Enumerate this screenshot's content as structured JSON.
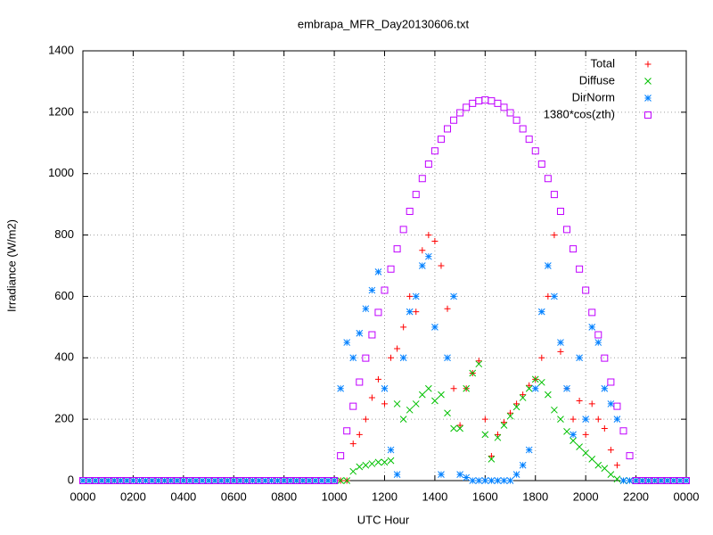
{
  "chart_data": {
    "type": "scatter",
    "title": "embrapa_MFR_Day20130606.txt",
    "x_label": "UTC Hour",
    "y_label": "Irradiance (W/m2)",
    "xlim": [
      0,
      24
    ],
    "xticks": [
      {
        "value": 0,
        "label": "0000"
      },
      {
        "value": 2,
        "label": "0200"
      },
      {
        "value": 4,
        "label": "0400"
      },
      {
        "value": 6,
        "label": "0600"
      },
      {
        "value": 8,
        "label": "0800"
      },
      {
        "value": 10,
        "label": "1000"
      },
      {
        "value": 12,
        "label": "1200"
      },
      {
        "value": 14,
        "label": "1400"
      },
      {
        "value": 16,
        "label": "1600"
      },
      {
        "value": 18,
        "label": "1800"
      },
      {
        "value": 20,
        "label": "2000"
      },
      {
        "value": 22,
        "label": "2200"
      },
      {
        "value": 24,
        "label": "0000"
      }
    ],
    "ylim": [
      0,
      1400
    ],
    "yticks": [
      0,
      200,
      400,
      600,
      800,
      1000,
      1200,
      1400
    ],
    "grid": true,
    "legend": "top-right",
    "x": [
      0,
      0.25,
      0.5,
      0.75,
      1,
      1.25,
      1.5,
      1.75,
      2,
      2.25,
      2.5,
      2.75,
      3,
      3.25,
      3.5,
      3.75,
      4,
      4.25,
      4.5,
      4.75,
      5,
      5.25,
      5.5,
      5.75,
      6,
      6.25,
      6.5,
      6.75,
      7,
      7.25,
      7.5,
      7.75,
      8,
      8.25,
      8.5,
      8.75,
      9,
      9.25,
      9.5,
      9.75,
      10,
      10.25,
      10.5,
      10.75,
      11,
      11.25,
      11.5,
      11.75,
      12,
      12.25,
      12.5,
      12.75,
      13,
      13.25,
      13.5,
      13.75,
      14,
      14.25,
      14.5,
      14.75,
      15,
      15.25,
      15.5,
      15.75,
      16,
      16.25,
      16.5,
      16.75,
      17,
      17.25,
      17.5,
      17.75,
      18,
      18.25,
      18.5,
      18.75,
      19,
      19.25,
      19.5,
      19.75,
      20,
      20.25,
      20.5,
      20.75,
      21,
      21.25,
      21.5,
      21.75,
      22,
      22.25,
      22.5,
      22.75,
      23,
      23.25,
      23.5,
      23.75,
      24
    ],
    "series": [
      {
        "name": "Total",
        "color": "#ff0000",
        "marker": "plus",
        "values": [
          0,
          0,
          0,
          0,
          0,
          0,
          0,
          0,
          0,
          0,
          0,
          0,
          0,
          0,
          0,
          0,
          0,
          0,
          0,
          0,
          0,
          0,
          0,
          0,
          0,
          0,
          0,
          0,
          0,
          0,
          0,
          0,
          0,
          0,
          0,
          0,
          0,
          0,
          0,
          0,
          0,
          0,
          0,
          120,
          150,
          200,
          270,
          330,
          250,
          400,
          430,
          500,
          600,
          550,
          750,
          800,
          780,
          700,
          560,
          300,
          180,
          300,
          350,
          390,
          200,
          80,
          150,
          190,
          220,
          250,
          280,
          310,
          330,
          400,
          600,
          800,
          420,
          300,
          200,
          260,
          150,
          250,
          200,
          170,
          100,
          50,
          0,
          0,
          0,
          0,
          0,
          0,
          0,
          0,
          0,
          0,
          0
        ]
      },
      {
        "name": "Diffuse",
        "color": "#00c000",
        "marker": "cross",
        "values": [
          0,
          0,
          0,
          0,
          0,
          0,
          0,
          0,
          0,
          0,
          0,
          0,
          0,
          0,
          0,
          0,
          0,
          0,
          0,
          0,
          0,
          0,
          0,
          0,
          0,
          0,
          0,
          0,
          0,
          0,
          0,
          0,
          0,
          0,
          0,
          0,
          0,
          0,
          0,
          0,
          0,
          0,
          0,
          30,
          45,
          50,
          55,
          60,
          60,
          65,
          250,
          200,
          230,
          250,
          280,
          300,
          260,
          280,
          220,
          170,
          170,
          300,
          350,
          380,
          150,
          70,
          140,
          180,
          210,
          240,
          270,
          300,
          330,
          320,
          280,
          230,
          200,
          160,
          130,
          110,
          90,
          70,
          50,
          40,
          20,
          5,
          0,
          0,
          0,
          0,
          0,
          0,
          0,
          0,
          0,
          0,
          0
        ]
      },
      {
        "name": "DirNorm",
        "color": "#0080ff",
        "marker": "star",
        "values": [
          0,
          0,
          0,
          0,
          0,
          0,
          0,
          0,
          0,
          0,
          0,
          0,
          0,
          0,
          0,
          0,
          0,
          0,
          0,
          0,
          0,
          0,
          0,
          0,
          0,
          0,
          0,
          0,
          0,
          0,
          0,
          0,
          0,
          0,
          0,
          0,
          0,
          0,
          0,
          0,
          0,
          300,
          450,
          400,
          480,
          560,
          620,
          680,
          300,
          100,
          20,
          400,
          550,
          600,
          700,
          730,
          500,
          20,
          400,
          600,
          20,
          10,
          0,
          0,
          0,
          0,
          0,
          0,
          0,
          20,
          50,
          100,
          300,
          550,
          700,
          600,
          450,
          300,
          150,
          400,
          200,
          500,
          450,
          300,
          250,
          200,
          0,
          0,
          0,
          0,
          0,
          0,
          0,
          0,
          0,
          0,
          0
        ]
      },
      {
        "name": "1380*cos(zth)",
        "color": "#c000ff",
        "marker": "square",
        "values": [
          0,
          0,
          0,
          0,
          0,
          0,
          0,
          0,
          0,
          0,
          0,
          0,
          0,
          0,
          0,
          0,
          0,
          0,
          0,
          0,
          0,
          0,
          0,
          0,
          0,
          0,
          0,
          0,
          0,
          0,
          0,
          0,
          0,
          0,
          0,
          0,
          0,
          0,
          0,
          0,
          0,
          81,
          162,
          242,
          321,
          399,
          475,
          548,
          620,
          689,
          755,
          818,
          877,
          932,
          984,
          1031,
          1074,
          1112,
          1146,
          1174,
          1198,
          1216,
          1229,
          1237,
          1240,
          1237,
          1229,
          1216,
          1198,
          1174,
          1146,
          1112,
          1074,
          1031,
          984,
          932,
          877,
          818,
          755,
          689,
          620,
          548,
          475,
          399,
          321,
          242,
          162,
          81,
          0,
          0,
          0,
          0,
          0,
          0,
          0,
          0,
          0
        ]
      }
    ]
  }
}
